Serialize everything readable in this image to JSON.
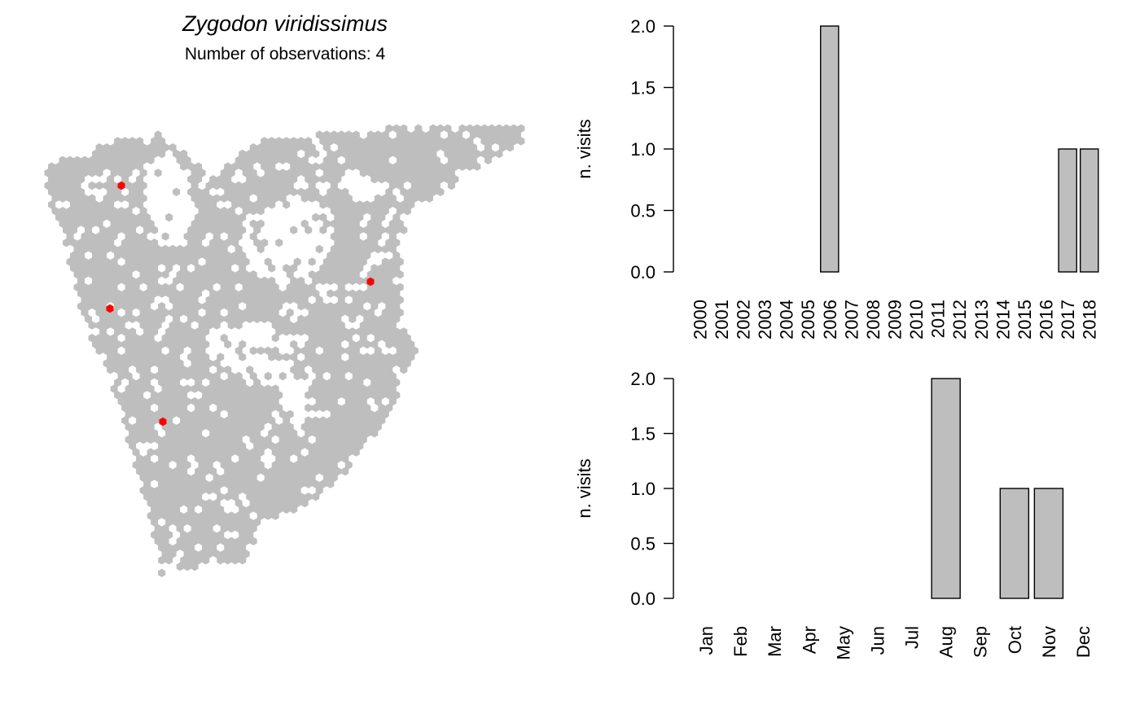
{
  "colors": {
    "land": "#bebebe",
    "observation": "#ff0000",
    "bar_fill": "#bebebe",
    "bar_stroke": "#000000"
  },
  "map": {
    "title": "Zygodon viridissimus",
    "subtitle": "Number of observations: 4",
    "observation_count": 4
  },
  "chart_data": [
    {
      "type": "bar",
      "categories": [
        "2000",
        "2001",
        "2002",
        "2003",
        "2004",
        "2005",
        "2006",
        "2007",
        "2008",
        "2009",
        "2010",
        "2011",
        "2012",
        "2013",
        "2014",
        "2015",
        "2016",
        "2017",
        "2018"
      ],
      "values": [
        0,
        0,
        0,
        0,
        0,
        0,
        2,
        0,
        0,
        0,
        0,
        0,
        0,
        0,
        0,
        0,
        0,
        1,
        1
      ],
      "title": "",
      "xlabel": "",
      "ylabel": "n. visits",
      "ylim": [
        0,
        2
      ],
      "yticks": [
        "0.0",
        "0.5",
        "1.0",
        "1.5",
        "2.0"
      ],
      "grid": false
    },
    {
      "type": "bar",
      "categories": [
        "Jan",
        "Feb",
        "Mar",
        "Apr",
        "May",
        "Jun",
        "Jul",
        "Aug",
        "Sep",
        "Oct",
        "Nov",
        "Dec"
      ],
      "values": [
        0,
        0,
        0,
        0,
        0,
        0,
        0,
        2,
        0,
        1,
        1,
        0
      ],
      "title": "",
      "xlabel": "",
      "ylabel": "n. visits",
      "ylim": [
        0,
        2
      ],
      "yticks": [
        "0.0",
        "0.5",
        "1.0",
        "1.5",
        "2.0"
      ],
      "grid": false
    }
  ]
}
